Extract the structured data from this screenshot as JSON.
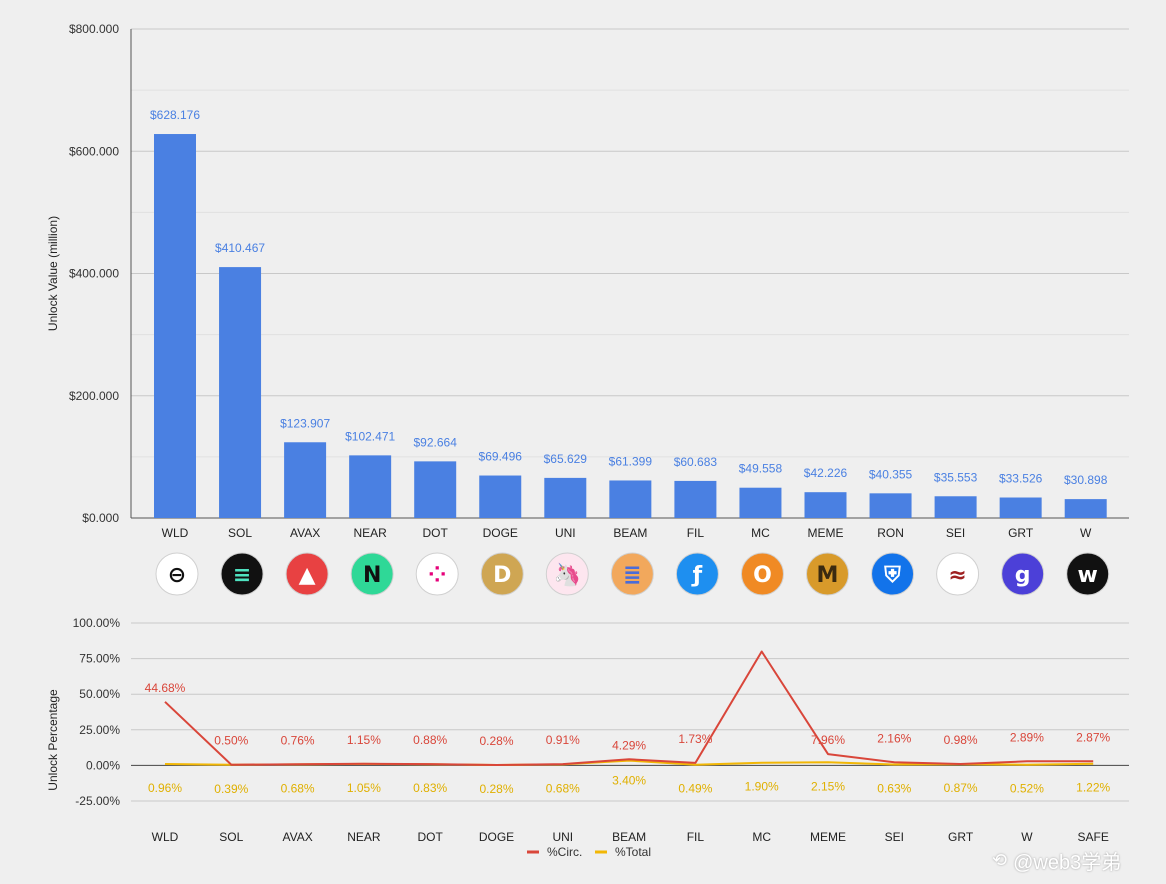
{
  "chart_data": [
    {
      "type": "bar",
      "title": "",
      "xlabel": "",
      "ylabel": "Unlock Value (million)",
      "ylim": [
        0,
        800
      ],
      "yticks": [
        "$0.000",
        "$200.000",
        "$400.000",
        "$600.000",
        "$800.000"
      ],
      "grid": true,
      "categories": [
        "WLD",
        "SOL",
        "AVAX",
        "NEAR",
        "DOT",
        "DOGE",
        "UNI",
        "BEAM",
        "FIL",
        "MC",
        "MEME",
        "RON",
        "SEI",
        "GRT",
        "W"
      ],
      "values": [
        628.176,
        410.467,
        123.907,
        102.471,
        92.664,
        69.496,
        65.629,
        61.399,
        60.683,
        49.558,
        42.226,
        40.355,
        35.553,
        33.526,
        30.898
      ],
      "data_labels": [
        "$628.176",
        "$410.467",
        "$123.907",
        "$102.471",
        "$92.664",
        "$69.496",
        "$65.629",
        "$61.399",
        "$60.683",
        "$49.558",
        "$42.226",
        "$40.355",
        "$35.553",
        "$33.526",
        "$30.898"
      ],
      "bar_color": "#4a80e2",
      "label_color": "#4a80e2",
      "token_icons": [
        {
          "name": "worldcoin-icon",
          "bg": "#ffffff",
          "fg": "#111111",
          "glyph": "⊖"
        },
        {
          "name": "solana-icon",
          "bg": "#111111",
          "fg": "#4fe3c1",
          "glyph": "≡"
        },
        {
          "name": "avalanche-icon",
          "bg": "#e84142",
          "fg": "#ffffff",
          "glyph": "▲"
        },
        {
          "name": "near-icon",
          "bg": "#2fd897",
          "fg": "#111111",
          "glyph": "N"
        },
        {
          "name": "polkadot-icon",
          "bg": "#ffffff",
          "fg": "#e6007a",
          "glyph": "⁘"
        },
        {
          "name": "dogecoin-icon",
          "bg": "#cfa653",
          "fg": "#ffffff",
          "glyph": "D"
        },
        {
          "name": "uniswap-icon",
          "bg": "#fde6ef",
          "fg": "#ff007a",
          "glyph": "🦄"
        },
        {
          "name": "beam-icon",
          "bg": "#f2a85c",
          "fg": "#4b6cd8",
          "glyph": "≣"
        },
        {
          "name": "filecoin-icon",
          "bg": "#1e8ff0",
          "fg": "#ffffff",
          "glyph": "ƒ"
        },
        {
          "name": "mc-icon",
          "bg": "#f08a24",
          "fg": "#ffffff",
          "glyph": "O"
        },
        {
          "name": "meme-icon",
          "bg": "#d89a2a",
          "fg": "#3a2a10",
          "glyph": "M"
        },
        {
          "name": "ronin-icon",
          "bg": "#1273ea",
          "fg": "#ffffff",
          "glyph": "⛨"
        },
        {
          "name": "sei-icon",
          "bg": "#ffffff",
          "fg": "#9e1f20",
          "glyph": "≈"
        },
        {
          "name": "graph-icon",
          "bg": "#4c40d8",
          "fg": "#ffffff",
          "glyph": "g"
        },
        {
          "name": "wormhole-icon",
          "bg": "#111111",
          "fg": "#ffffff",
          "glyph": "w"
        }
      ]
    },
    {
      "type": "line",
      "title": "",
      "xlabel": "",
      "ylabel": "Unlock Percentage",
      "ylim": [
        -25,
        100
      ],
      "yticks": [
        "-25.00%",
        "0.00%",
        "25.00%",
        "50.00%",
        "75.00%",
        "100.00%"
      ],
      "grid": true,
      "legend": "bottom",
      "categories": [
        "WLD",
        "SOL",
        "AVAX",
        "NEAR",
        "DOT",
        "DOGE",
        "UNI",
        "BEAM",
        "FIL",
        "MC",
        "MEME",
        "SEI",
        "GRT",
        "W",
        "SAFE"
      ],
      "series": [
        {
          "name": "%Circ.",
          "color": "#d9463a",
          "values": [
            44.68,
            0.5,
            0.76,
            1.15,
            0.88,
            0.28,
            0.91,
            4.29,
            1.73,
            80.0,
            7.96,
            2.16,
            0.98,
            2.89,
            2.87
          ],
          "labels": [
            "44.68%",
            "0.50%",
            "0.76%",
            "1.15%",
            "0.88%",
            "0.28%",
            "0.91%",
            "4.29%",
            "1.73%",
            "",
            "7.96%",
            "2.16%",
            "0.98%",
            "2.89%",
            "2.87%"
          ]
        },
        {
          "name": "%Total",
          "color": "#f2b705",
          "values": [
            0.96,
            0.39,
            0.68,
            1.05,
            0.83,
            0.28,
            0.68,
            3.4,
            0.49,
            1.9,
            2.15,
            0.63,
            0.87,
            0.52,
            1.22
          ],
          "labels": [
            "0.96%",
            "0.39%",
            "0.68%",
            "1.05%",
            "0.83%",
            "0.28%",
            "0.68%",
            "3.40%",
            "0.49%",
            "1.90%",
            "2.15%",
            "0.63%",
            "0.87%",
            "0.52%",
            "1.22%"
          ]
        }
      ]
    }
  ],
  "watermark": {
    "text": "@web3学弟",
    "icon": "share-icon"
  }
}
